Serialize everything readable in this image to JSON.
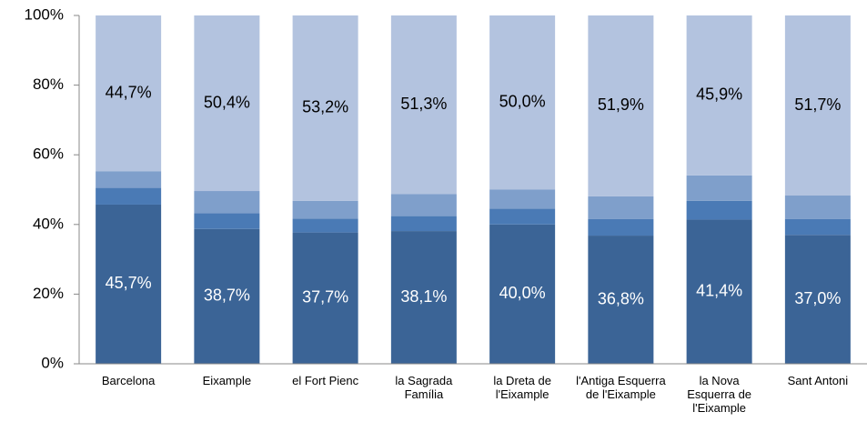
{
  "chart_data": {
    "type": "stacked_bar",
    "categories": [
      "Barcelona",
      "Eixample",
      "el Fort Pienc",
      "la Sagrada Família",
      "la Dreta de l'Eixample",
      "l'Antiga Esquerra de l'Eixample",
      "la Nova Esquerra de l'Eixample",
      "Sant Antoni"
    ],
    "series": [
      {
        "color": "#3b6496",
        "values": [
          45.7,
          38.7,
          37.7,
          38.1,
          40.0,
          36.8,
          41.4,
          37.0
        ],
        "value_labels": [
          "45,7%",
          "38,7%",
          "37,7%",
          "38,1%",
          "40,0%",
          "36,8%",
          "41,4%",
          "37,0%"
        ],
        "label_color": "#ffffff"
      },
      {
        "color": "#4a7ab5",
        "values": [
          4.8,
          4.5,
          4.0,
          4.3,
          4.5,
          4.8,
          5.4,
          4.6
        ]
      },
      {
        "color": "#7f9fcb",
        "values": [
          4.8,
          6.4,
          5.1,
          6.3,
          5.5,
          6.5,
          7.3,
          6.7
        ]
      },
      {
        "color": "#b3c3df",
        "values": [
          44.7,
          50.4,
          53.2,
          51.3,
          50.0,
          51.9,
          45.9,
          51.7
        ],
        "value_labels": [
          "44,7%",
          "50,4%",
          "53,2%",
          "51,3%",
          "50,0%",
          "51,9%",
          "45,9%",
          "51,7%"
        ],
        "label_color": "#000000"
      }
    ],
    "ylim": [
      0,
      100
    ],
    "yticks": [
      {
        "value": 0,
        "label": "0%"
      },
      {
        "value": 20,
        "label": "20%"
      },
      {
        "value": 40,
        "label": "40%"
      },
      {
        "value": 60,
        "label": "60%"
      },
      {
        "value": 80,
        "label": "80%"
      },
      {
        "value": 100,
        "label": "100%"
      }
    ],
    "grid": false
  }
}
